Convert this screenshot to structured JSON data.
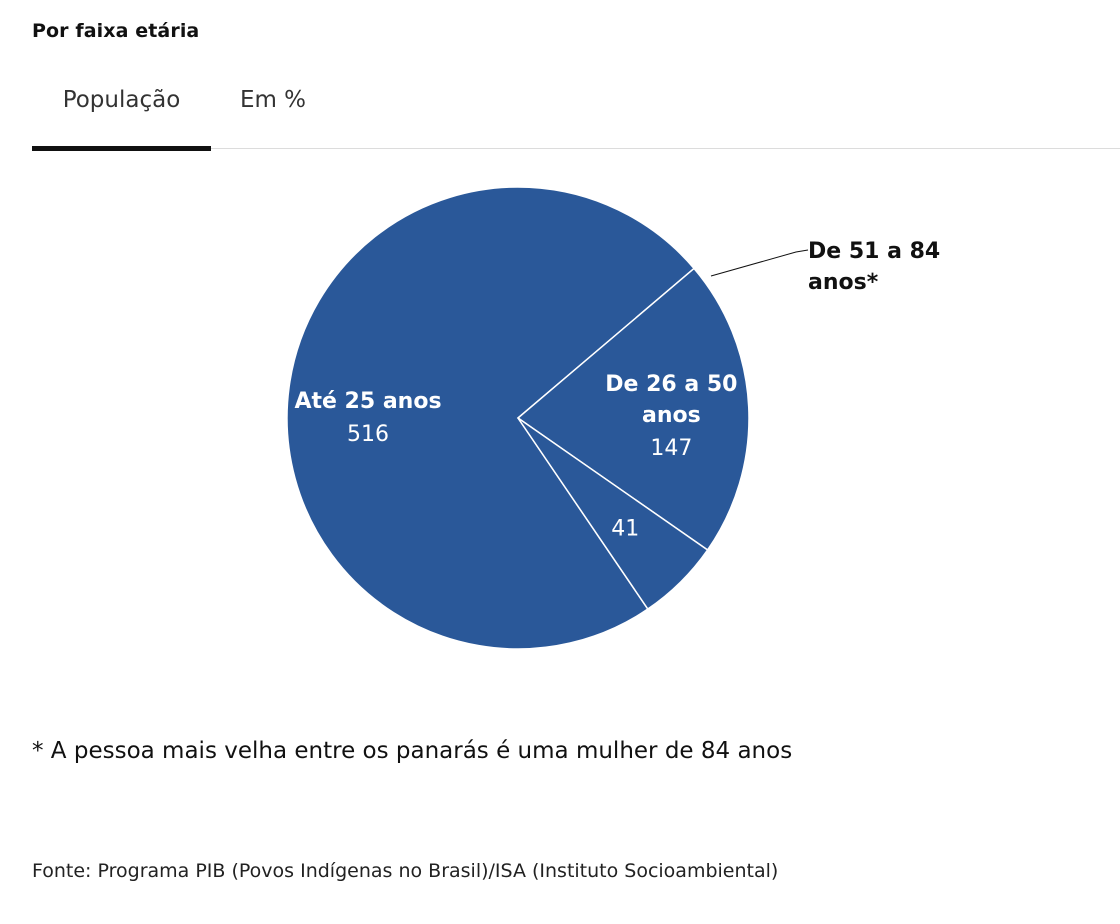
{
  "title": "Por faixa etária",
  "tabs": [
    {
      "label": "População",
      "active": true
    },
    {
      "label": "Em %",
      "active": false
    }
  ],
  "chart_data": {
    "type": "pie",
    "slices": [
      {
        "label": [
          "Até 25 anos"
        ],
        "value": 516,
        "color": "#2a5899"
      },
      {
        "label": [
          "De 26 a 50",
          "anos"
        ],
        "value": 147,
        "color": "#2a5899"
      },
      {
        "label": [
          "De 51 a 84",
          "anos*"
        ],
        "value": 41,
        "color": "#2a5899"
      }
    ],
    "slice_border_color": "#ffffff"
  },
  "footnote": "* A pessoa mais velha entre os panarás é uma mulher de 84 anos",
  "source": "Fonte: Programa PIB (Povos Indígenas no Brasil)/ISA (Instituto Socioambiental)"
}
